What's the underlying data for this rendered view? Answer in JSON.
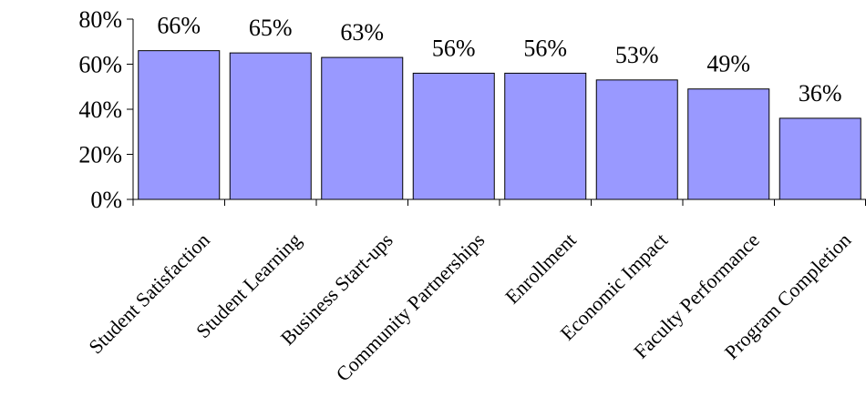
{
  "chart_data": {
    "type": "bar",
    "title": "",
    "xlabel": "",
    "ylabel": "",
    "categories": [
      "Student Satisfaction",
      "Student Learning",
      "Business Start-ups",
      "Community Partnerships",
      "Enrollment",
      "Economic Impact",
      "Faculty Performance",
      "Program Completion"
    ],
    "values": [
      66,
      65,
      63,
      56,
      56,
      53,
      49,
      36
    ],
    "data_labels": [
      "66%",
      "65%",
      "63%",
      "56%",
      "56%",
      "53%",
      "49%",
      "36%"
    ],
    "ylim": [
      0,
      80
    ],
    "yticks": [
      0,
      20,
      40,
      60,
      80
    ],
    "ytick_labels": [
      "0%",
      "20%",
      "40%",
      "60%",
      "80%"
    ],
    "grid": false,
    "legend": "none",
    "colors": {
      "bar_fill": "#9999ff",
      "bar_stroke": "#000000",
      "axis": "#000000"
    }
  }
}
